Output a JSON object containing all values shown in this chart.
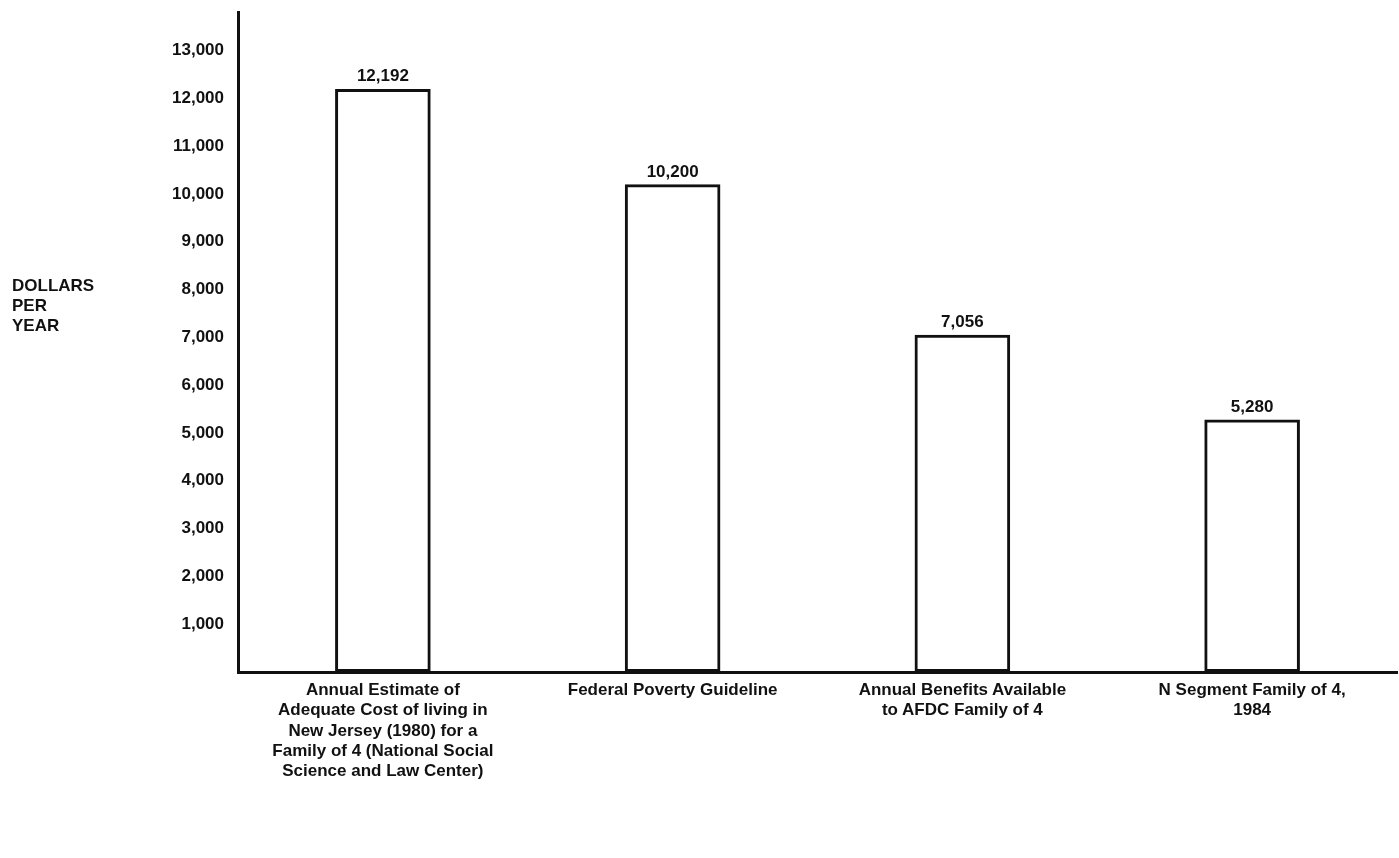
{
  "chart_data": {
    "type": "bar",
    "ylabel": "DOLLARS PER YEAR",
    "categories": [
      "Annual Estimate of Adequate Cost of living in New Jersey (1980) for a Family of 4 (National Social Science and Law Center)",
      "Federal Poverty Guideline",
      "Annual Benefits Available to AFDC Family of 4",
      "N Segment Family of 4, 1984"
    ],
    "values": [
      12192,
      10200,
      7056,
      5280
    ],
    "color": "#111111",
    "value_labels": [
      "12,192",
      "10,200",
      "7,056",
      "5,280"
    ],
    "ylim": [
      0,
      13800
    ],
    "yticks": [
      {
        "value": 1000,
        "label": "1,000"
      },
      {
        "value": 2000,
        "label": "2,000"
      },
      {
        "value": 3000,
        "label": "3,000"
      },
      {
        "value": 4000,
        "label": "4,000"
      },
      {
        "value": 5000,
        "label": "5,000"
      },
      {
        "value": 6000,
        "label": "6,000"
      },
      {
        "value": 7000,
        "label": "7,000"
      },
      {
        "value": 8000,
        "label": "8,000"
      },
      {
        "value": 9000,
        "label": "9,000"
      },
      {
        "value": 10000,
        "label": "10,000"
      },
      {
        "value": 11000,
        "label": "11,000"
      },
      {
        "value": 12000,
        "label": "12,000"
      },
      {
        "value": 13000,
        "label": "13,000"
      }
    ],
    "grid": false,
    "legend": false
  }
}
